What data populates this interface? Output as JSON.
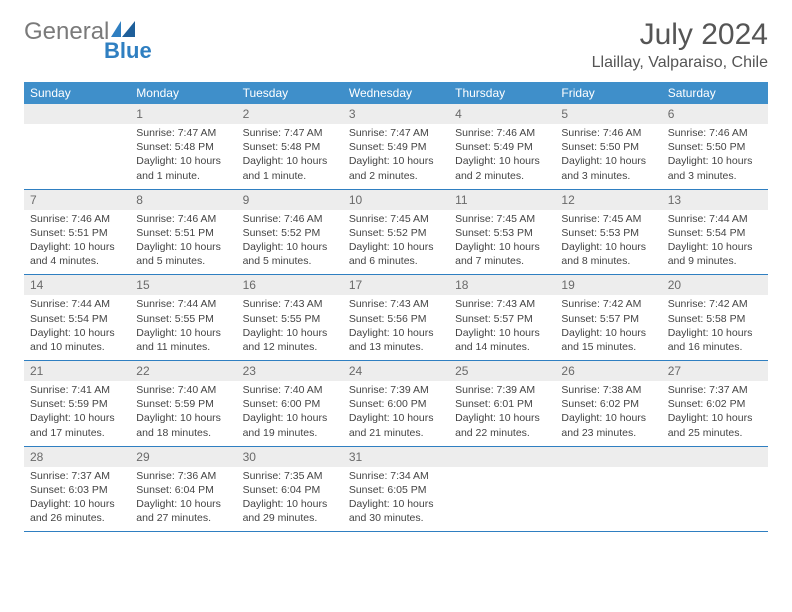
{
  "brand": {
    "gray": "General",
    "blue": "Blue",
    "accent": "#2f7fc1"
  },
  "title": "July 2024",
  "location": "Llaillay, Valparaiso, Chile",
  "colors": {
    "header_bg": "#3f8fca",
    "daynum_bg": "#ededed",
    "row_border": "#2f7fc1",
    "logo_blue": "#2f7fc1"
  },
  "day_labels": [
    "Sunday",
    "Monday",
    "Tuesday",
    "Wednesday",
    "Thursday",
    "Friday",
    "Saturday"
  ],
  "weeks": [
    [
      {
        "n": "",
        "sr": "",
        "ss": "",
        "dl": ""
      },
      {
        "n": "1",
        "sr": "Sunrise: 7:47 AM",
        "ss": "Sunset: 5:48 PM",
        "dl": "Daylight: 10 hours and 1 minute."
      },
      {
        "n": "2",
        "sr": "Sunrise: 7:47 AM",
        "ss": "Sunset: 5:48 PM",
        "dl": "Daylight: 10 hours and 1 minute."
      },
      {
        "n": "3",
        "sr": "Sunrise: 7:47 AM",
        "ss": "Sunset: 5:49 PM",
        "dl": "Daylight: 10 hours and 2 minutes."
      },
      {
        "n": "4",
        "sr": "Sunrise: 7:46 AM",
        "ss": "Sunset: 5:49 PM",
        "dl": "Daylight: 10 hours and 2 minutes."
      },
      {
        "n": "5",
        "sr": "Sunrise: 7:46 AM",
        "ss": "Sunset: 5:50 PM",
        "dl": "Daylight: 10 hours and 3 minutes."
      },
      {
        "n": "6",
        "sr": "Sunrise: 7:46 AM",
        "ss": "Sunset: 5:50 PM",
        "dl": "Daylight: 10 hours and 3 minutes."
      }
    ],
    [
      {
        "n": "7",
        "sr": "Sunrise: 7:46 AM",
        "ss": "Sunset: 5:51 PM",
        "dl": "Daylight: 10 hours and 4 minutes."
      },
      {
        "n": "8",
        "sr": "Sunrise: 7:46 AM",
        "ss": "Sunset: 5:51 PM",
        "dl": "Daylight: 10 hours and 5 minutes."
      },
      {
        "n": "9",
        "sr": "Sunrise: 7:46 AM",
        "ss": "Sunset: 5:52 PM",
        "dl": "Daylight: 10 hours and 5 minutes."
      },
      {
        "n": "10",
        "sr": "Sunrise: 7:45 AM",
        "ss": "Sunset: 5:52 PM",
        "dl": "Daylight: 10 hours and 6 minutes."
      },
      {
        "n": "11",
        "sr": "Sunrise: 7:45 AM",
        "ss": "Sunset: 5:53 PM",
        "dl": "Daylight: 10 hours and 7 minutes."
      },
      {
        "n": "12",
        "sr": "Sunrise: 7:45 AM",
        "ss": "Sunset: 5:53 PM",
        "dl": "Daylight: 10 hours and 8 minutes."
      },
      {
        "n": "13",
        "sr": "Sunrise: 7:44 AM",
        "ss": "Sunset: 5:54 PM",
        "dl": "Daylight: 10 hours and 9 minutes."
      }
    ],
    [
      {
        "n": "14",
        "sr": "Sunrise: 7:44 AM",
        "ss": "Sunset: 5:54 PM",
        "dl": "Daylight: 10 hours and 10 minutes."
      },
      {
        "n": "15",
        "sr": "Sunrise: 7:44 AM",
        "ss": "Sunset: 5:55 PM",
        "dl": "Daylight: 10 hours and 11 minutes."
      },
      {
        "n": "16",
        "sr": "Sunrise: 7:43 AM",
        "ss": "Sunset: 5:55 PM",
        "dl": "Daylight: 10 hours and 12 minutes."
      },
      {
        "n": "17",
        "sr": "Sunrise: 7:43 AM",
        "ss": "Sunset: 5:56 PM",
        "dl": "Daylight: 10 hours and 13 minutes."
      },
      {
        "n": "18",
        "sr": "Sunrise: 7:43 AM",
        "ss": "Sunset: 5:57 PM",
        "dl": "Daylight: 10 hours and 14 minutes."
      },
      {
        "n": "19",
        "sr": "Sunrise: 7:42 AM",
        "ss": "Sunset: 5:57 PM",
        "dl": "Daylight: 10 hours and 15 minutes."
      },
      {
        "n": "20",
        "sr": "Sunrise: 7:42 AM",
        "ss": "Sunset: 5:58 PM",
        "dl": "Daylight: 10 hours and 16 minutes."
      }
    ],
    [
      {
        "n": "21",
        "sr": "Sunrise: 7:41 AM",
        "ss": "Sunset: 5:59 PM",
        "dl": "Daylight: 10 hours and 17 minutes."
      },
      {
        "n": "22",
        "sr": "Sunrise: 7:40 AM",
        "ss": "Sunset: 5:59 PM",
        "dl": "Daylight: 10 hours and 18 minutes."
      },
      {
        "n": "23",
        "sr": "Sunrise: 7:40 AM",
        "ss": "Sunset: 6:00 PM",
        "dl": "Daylight: 10 hours and 19 minutes."
      },
      {
        "n": "24",
        "sr": "Sunrise: 7:39 AM",
        "ss": "Sunset: 6:00 PM",
        "dl": "Daylight: 10 hours and 21 minutes."
      },
      {
        "n": "25",
        "sr": "Sunrise: 7:39 AM",
        "ss": "Sunset: 6:01 PM",
        "dl": "Daylight: 10 hours and 22 minutes."
      },
      {
        "n": "26",
        "sr": "Sunrise: 7:38 AM",
        "ss": "Sunset: 6:02 PM",
        "dl": "Daylight: 10 hours and 23 minutes."
      },
      {
        "n": "27",
        "sr": "Sunrise: 7:37 AM",
        "ss": "Sunset: 6:02 PM",
        "dl": "Daylight: 10 hours and 25 minutes."
      }
    ],
    [
      {
        "n": "28",
        "sr": "Sunrise: 7:37 AM",
        "ss": "Sunset: 6:03 PM",
        "dl": "Daylight: 10 hours and 26 minutes."
      },
      {
        "n": "29",
        "sr": "Sunrise: 7:36 AM",
        "ss": "Sunset: 6:04 PM",
        "dl": "Daylight: 10 hours and 27 minutes."
      },
      {
        "n": "30",
        "sr": "Sunrise: 7:35 AM",
        "ss": "Sunset: 6:04 PM",
        "dl": "Daylight: 10 hours and 29 minutes."
      },
      {
        "n": "31",
        "sr": "Sunrise: 7:34 AM",
        "ss": "Sunset: 6:05 PM",
        "dl": "Daylight: 10 hours and 30 minutes."
      },
      {
        "n": "",
        "sr": "",
        "ss": "",
        "dl": ""
      },
      {
        "n": "",
        "sr": "",
        "ss": "",
        "dl": ""
      },
      {
        "n": "",
        "sr": "",
        "ss": "",
        "dl": ""
      }
    ]
  ]
}
